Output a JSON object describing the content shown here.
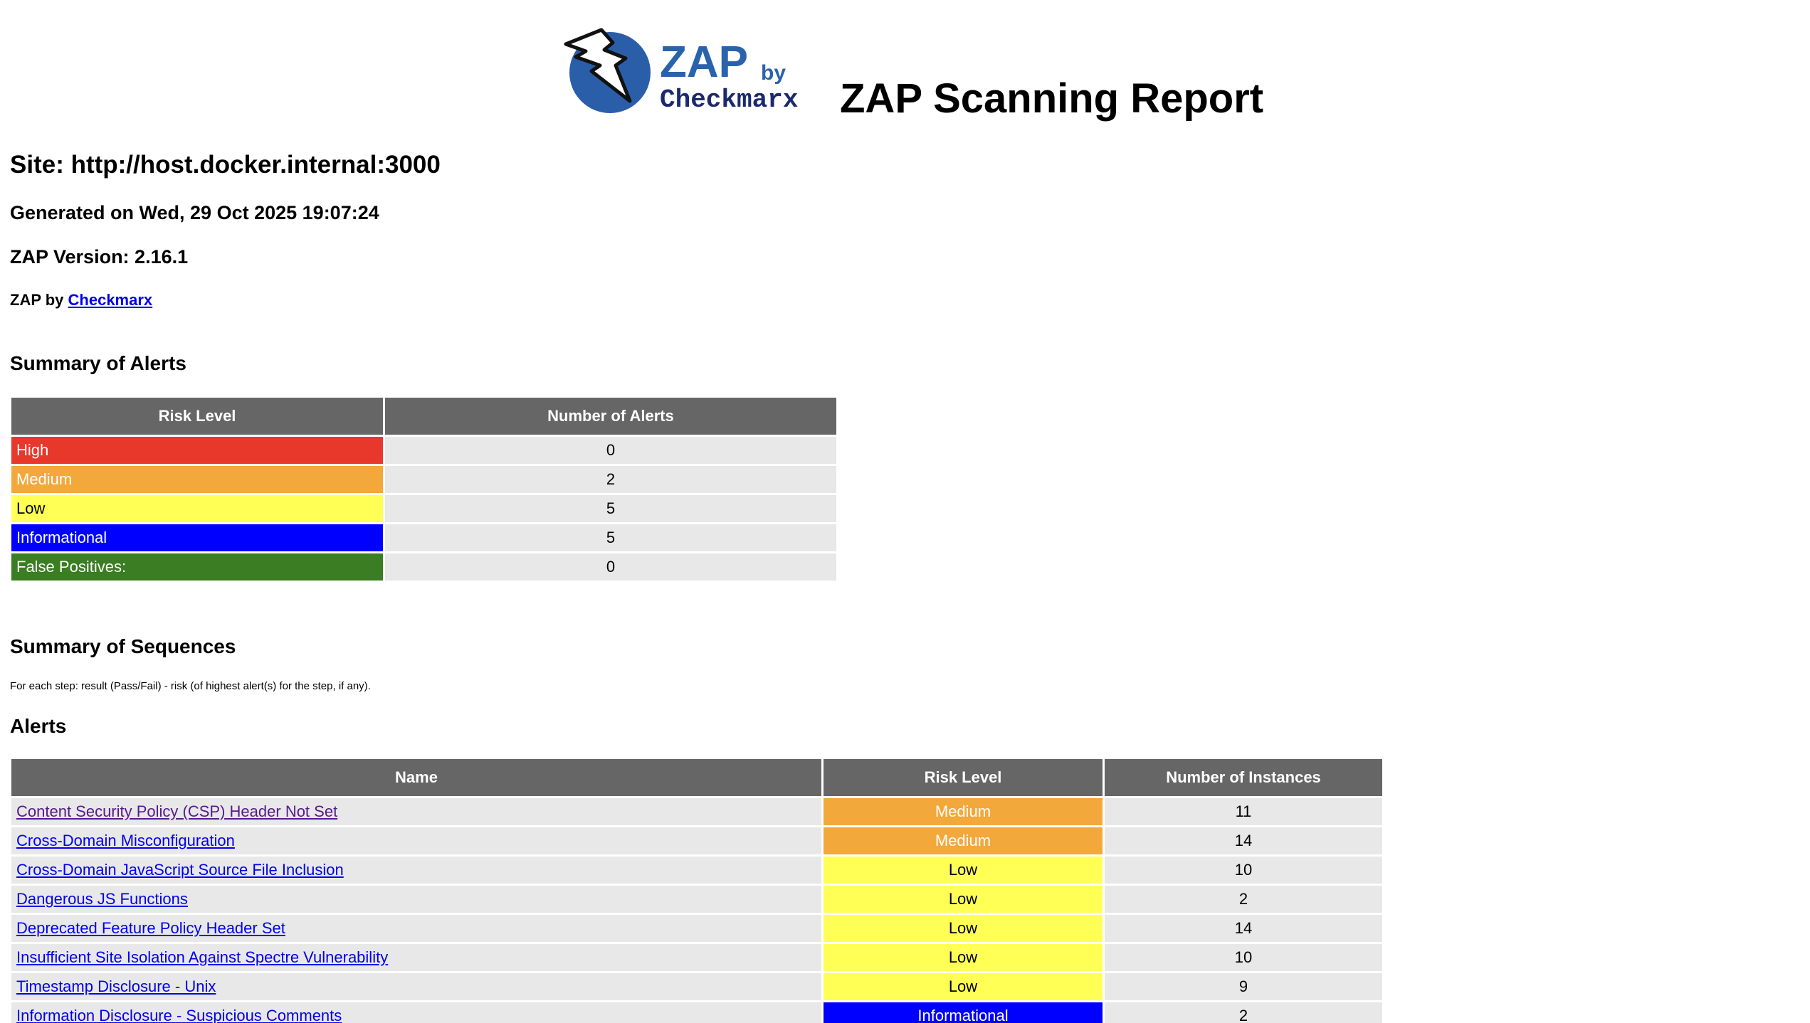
{
  "header": {
    "logo": {
      "brand": "ZAP",
      "by": "by",
      "company": "Checkmarx",
      "icon": "lightning-bolt-icon",
      "colors": {
        "circle": "#2a5ea8",
        "brand_text": "#2a62ac",
        "company_text": "#1a2a6c"
      }
    },
    "title": "ZAP Scanning Report"
  },
  "info": {
    "site": "Site: http://host.docker.internal:3000",
    "generated": "Generated on Wed, 29 Oct 2025 19:07:24",
    "version": "ZAP Version: 2.16.1",
    "byline_prefix": "ZAP by",
    "byline_link": "Checkmarx"
  },
  "summary_alerts": {
    "heading": "Summary of Alerts",
    "columns": [
      "Risk Level",
      "Number of Alerts"
    ],
    "rows": [
      {
        "level": "High",
        "count": "0",
        "color": "#e8372b"
      },
      {
        "level": "Medium",
        "count": "2",
        "color": "#f2a83b"
      },
      {
        "level": "Low",
        "count": "5",
        "color": "#ffff55"
      },
      {
        "level": "Informational",
        "count": "5",
        "color": "#0000ff"
      },
      {
        "level": "False Positives:",
        "count": "0",
        "color": "#3a7d22"
      }
    ]
  },
  "summary_sequences": {
    "heading": "Summary of Sequences",
    "note": "For each step: result (Pass/Fail) - risk (of highest alert(s) for the step, if any)."
  },
  "alerts": {
    "heading": "Alerts",
    "columns": [
      "Name",
      "Risk Level",
      "Number of Instances"
    ],
    "rows": [
      {
        "name": "Content Security Policy (CSP) Header Not Set",
        "risk": "Medium",
        "instances": "11"
      },
      {
        "name": "Cross-Domain Misconfiguration",
        "risk": "Medium",
        "instances": "14"
      },
      {
        "name": "Cross-Domain JavaScript Source File Inclusion",
        "risk": "Low",
        "instances": "10"
      },
      {
        "name": "Dangerous JS Functions",
        "risk": "Low",
        "instances": "2"
      },
      {
        "name": "Deprecated Feature Policy Header Set",
        "risk": "Low",
        "instances": "14"
      },
      {
        "name": "Insufficient Site Isolation Against Spectre Vulnerability",
        "risk": "Low",
        "instances": "10"
      },
      {
        "name": "Timestamp Disclosure - Unix",
        "risk": "Low",
        "instances": "9"
      },
      {
        "name": "Information Disclosure - Suspicious Comments",
        "risk": "Informational",
        "instances": "2"
      }
    ]
  }
}
